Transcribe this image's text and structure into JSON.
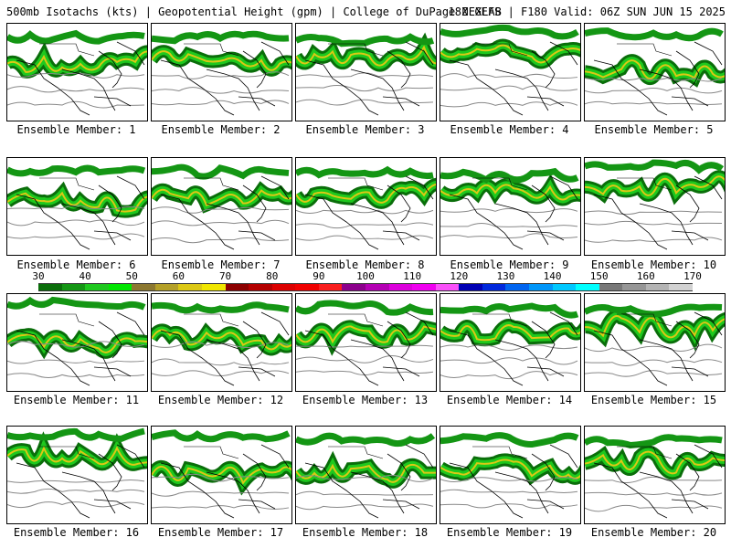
{
  "header": {
    "title_left": "500mb Isotachs (kts) | Geopotential Height (gpm) | College of DuPage NEXLAB",
    "title_right": "18Z GEFS | F180 Valid: 06Z SUN JUN 15 2025"
  },
  "panels": [
    {
      "label": "Ensemble Member: 1"
    },
    {
      "label": "Ensemble Member: 2"
    },
    {
      "label": "Ensemble Member: 3"
    },
    {
      "label": "Ensemble Member: 4"
    },
    {
      "label": "Ensemble Member: 5"
    },
    {
      "label": "Ensemble Member: 6"
    },
    {
      "label": "Ensemble Member: 7"
    },
    {
      "label": "Ensemble Member: 8"
    },
    {
      "label": "Ensemble Member: 9"
    },
    {
      "label": "Ensemble Member: 10"
    },
    {
      "label": "Ensemble Member: 11"
    },
    {
      "label": "Ensemble Member: 12"
    },
    {
      "label": "Ensemble Member: 13"
    },
    {
      "label": "Ensemble Member: 14"
    },
    {
      "label": "Ensemble Member: 15"
    },
    {
      "label": "Ensemble Member: 16"
    },
    {
      "label": "Ensemble Member: 17"
    },
    {
      "label": "Ensemble Member: 18"
    },
    {
      "label": "Ensemble Member: 19"
    },
    {
      "label": "Ensemble Member: 20"
    }
  ],
  "colorbar": {
    "ticks": [
      "30",
      "40",
      "50",
      "60",
      "70",
      "80",
      "90",
      "100",
      "110",
      "120",
      "130",
      "140",
      "150",
      "160",
      "170"
    ],
    "colors": [
      "#0a6e0a",
      "#149614",
      "#1ec81e",
      "#00e600",
      "#8c7830",
      "#b4a028",
      "#dcc814",
      "#f0e600",
      "#8c0000",
      "#b40000",
      "#dc0000",
      "#f00000",
      "#fa1e1e",
      "#8c008c",
      "#b400b4",
      "#dc00dc",
      "#f000f0",
      "#fa50fa",
      "#0000b4",
      "#0028dc",
      "#0064f0",
      "#0096fa",
      "#00c8ff",
      "#00ffff",
      "#787878",
      "#969696",
      "#b4b4b4",
      "#d2d2d2"
    ]
  }
}
